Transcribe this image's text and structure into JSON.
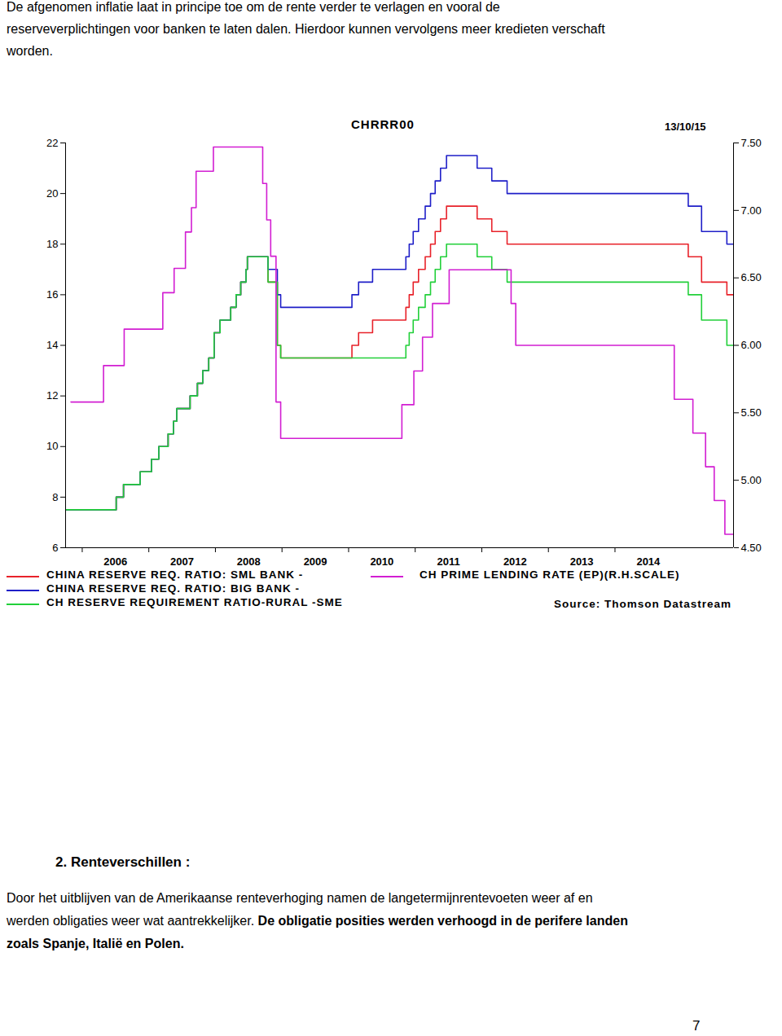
{
  "document": {
    "top_paragraph": [
      [
        {
          "text": "De afgenomen inflatie laat in principe toe om de rente verder te verlagen en vooral de"
        }
      ],
      [
        {
          "text": "reserveverplichtingen voor banken te laten dalen. Hierdoor kunnen vervolgens meer kredieten verschaft"
        }
      ],
      [
        {
          "text": "worden."
        }
      ]
    ],
    "heading": "2. Renteverschillen :",
    "bottom_paragraph": [
      [
        {
          "text": "Door het uitblijven van de Amerikaanse renteverhoging namen de langetermijnrentevoeten weer af en"
        }
      ],
      [
        {
          "text": "werden obligaties weer wat aantrekkelijker. "
        },
        {
          "text": "De obligatie posities werden verhoogd in de perifere landen",
          "bold": true
        }
      ],
      [
        {
          "text": "zoals Spanje, Italië en Polen.",
          "bold": true
        }
      ]
    ],
    "page_number": "7"
  },
  "chart_data": {
    "type": "line",
    "title": "CHRRR00",
    "annotations": [
      "13/10/15",
      "Source: Thomson Datastream"
    ],
    "xlim": [
      2005.75,
      2015.78
    ],
    "xticks": [
      2006,
      2007,
      2008,
      2009,
      2010,
      2011,
      2012,
      2013,
      2014
    ],
    "ylim": [
      6,
      22
    ],
    "yticks": [
      6,
      8,
      10,
      12,
      14,
      16,
      18,
      20,
      22
    ],
    "y2lim": [
      4.5,
      7.5
    ],
    "y2ticks": [
      {
        "value": 4.5,
        "label": "4.50"
      },
      {
        "value": 5,
        "label": "5.00"
      },
      {
        "value": 5.5,
        "label": "5.50"
      },
      {
        "value": 6,
        "label": "6.00"
      },
      {
        "value": 6.5,
        "label": "6.50"
      },
      {
        "value": 7,
        "label": "7.00"
      },
      {
        "value": 7.5,
        "label": "7.50"
      }
    ],
    "grid": false,
    "legend": "bottom",
    "series": [
      {
        "name": "CHINA RESERVE REQ. RATIO: SML BANK -",
        "color": "#e8222a",
        "x": [
          2005.75,
          2006.51,
          2006.62,
          2006.87,
          2007.04,
          2007.15,
          2007.29,
          2007.37,
          2007.42,
          2007.62,
          2007.73,
          2007.81,
          2007.9,
          2007.98,
          2008.07,
          2008.23,
          2008.31,
          2008.38,
          2008.46,
          2008.48,
          2008.79,
          2008.93,
          2008.98,
          2010.05,
          2010.15,
          2010.36,
          2010.86,
          2010.91,
          2010.97,
          2011.05,
          2011.15,
          2011.23,
          2011.3,
          2011.38,
          2011.47,
          2011.93,
          2012.15,
          2012.38,
          2015.1,
          2015.3,
          2015.68,
          2015.78
        ],
        "values": [
          7.5,
          8,
          8.5,
          9,
          9.5,
          10,
          10.5,
          11,
          11.5,
          12,
          12.5,
          13,
          13.5,
          14.5,
          15,
          15.5,
          16,
          16.5,
          17,
          17.5,
          16.5,
          14,
          13.5,
          14,
          14.5,
          15,
          15.5,
          16,
          16.5,
          17,
          17.5,
          18,
          18.5,
          19,
          19.5,
          19,
          18.5,
          18,
          17.5,
          16.5,
          16,
          16
        ]
      },
      {
        "name": "CHINA RESERVE REQ. RATIO: BIG BANK -",
        "color": "#1f1fc8",
        "x": [
          2005.75,
          2006.51,
          2006.62,
          2006.87,
          2007.04,
          2007.15,
          2007.29,
          2007.37,
          2007.42,
          2007.62,
          2007.73,
          2007.81,
          2007.9,
          2007.98,
          2008.07,
          2008.23,
          2008.31,
          2008.38,
          2008.46,
          2008.48,
          2008.79,
          2008.93,
          2008.98,
          2010.05,
          2010.15,
          2010.36,
          2010.86,
          2010.91,
          2010.97,
          2011.05,
          2011.15,
          2011.23,
          2011.3,
          2011.38,
          2011.47,
          2011.93,
          2012.15,
          2012.38,
          2015.1,
          2015.3,
          2015.68,
          2015.78
        ],
        "values": [
          7.5,
          8,
          8.5,
          9,
          9.5,
          10,
          10.5,
          11,
          11.5,
          12,
          12.5,
          13,
          13.5,
          14.5,
          15,
          15.5,
          16,
          16.5,
          17,
          17.5,
          17,
          16,
          15.5,
          16,
          16.5,
          17,
          17.5,
          18,
          18.5,
          19,
          19.5,
          20,
          20.5,
          21,
          21.5,
          21,
          20.5,
          20,
          19.5,
          18.5,
          18,
          18
        ]
      },
      {
        "name": "CH RESERVE REQUIREMENT RATIO-RURAL -SME",
        "color": "#22d03a",
        "x": [
          2005.75,
          2006.51,
          2006.62,
          2006.87,
          2007.04,
          2007.15,
          2007.29,
          2007.37,
          2007.42,
          2007.62,
          2007.73,
          2007.81,
          2007.9,
          2007.98,
          2008.07,
          2008.23,
          2008.31,
          2008.38,
          2008.46,
          2008.48,
          2008.79,
          2008.93,
          2008.98,
          2010.86,
          2010.91,
          2010.97,
          2011.05,
          2011.15,
          2011.23,
          2011.3,
          2011.38,
          2011.47,
          2011.93,
          2012.15,
          2012.38,
          2015.1,
          2015.3,
          2015.68,
          2015.78
        ],
        "values": [
          7.5,
          8,
          8.5,
          9,
          9.5,
          10,
          10.5,
          11,
          11.5,
          12,
          12.5,
          13,
          13.5,
          14.5,
          15,
          15.5,
          16,
          16.5,
          17,
          17.5,
          16.5,
          14,
          13.5,
          14,
          14.5,
          15,
          15.5,
          16,
          16.5,
          17,
          17.5,
          18,
          17.5,
          17,
          16.5,
          16,
          15,
          14,
          14
        ]
      },
      {
        "name": "CH PRIME LENDING RATE (EP)(R.H.SCALE)",
        "color": "#d21ed2",
        "axis": "y2",
        "x": [
          2005.83,
          2006.32,
          2006.63,
          2007.21,
          2007.38,
          2007.55,
          2007.64,
          2007.71,
          2007.97,
          2008.71,
          2008.77,
          2008.83,
          2008.91,
          2008.98,
          2010.8,
          2010.98,
          2011.11,
          2011.26,
          2011.51,
          2012.44,
          2012.51,
          2014.89,
          2015.17,
          2015.36,
          2015.49,
          2015.65,
          2015.78
        ],
        "values": [
          5.58,
          5.85,
          6.12,
          6.39,
          6.57,
          6.84,
          7.02,
          7.29,
          7.47,
          7.2,
          6.93,
          6.66,
          5.58,
          5.31,
          5.56,
          5.81,
          6.06,
          6.31,
          6.56,
          6.31,
          6,
          5.6,
          5.35,
          5.1,
          4.85,
          4.6,
          4.6
        ]
      }
    ]
  }
}
